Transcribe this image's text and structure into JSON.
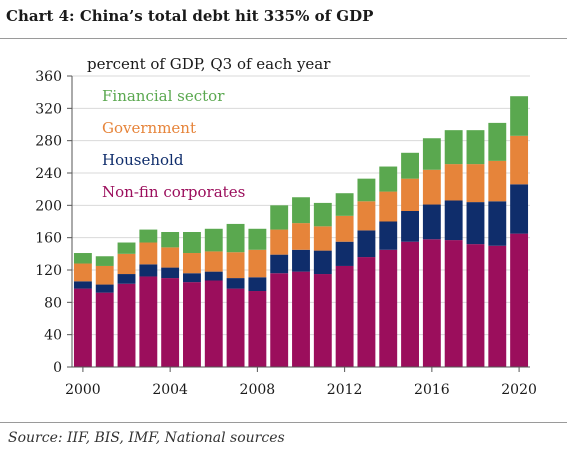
{
  "title": "Chart 4:  China’s total debt hit 335% of GDP",
  "source": "Source: IIF, BIS, IMF, National sources",
  "chart_data": {
    "type": "bar",
    "stacked": true,
    "ylabel": "percent of GDP, Q3  of each year",
    "ylim": [
      0,
      360
    ],
    "yticks": [
      0,
      40,
      80,
      120,
      160,
      200,
      240,
      280,
      320,
      360
    ],
    "x": [
      2000,
      2001,
      2002,
      2003,
      2004,
      2005,
      2006,
      2007,
      2008,
      2009,
      2010,
      2011,
      2012,
      2013,
      2014,
      2015,
      2016,
      2017,
      2018,
      2019,
      2020
    ],
    "xticks": [
      2000,
      2004,
      2008,
      2012,
      2016,
      2020
    ],
    "legend_position": "top-left",
    "series": [
      {
        "name": "Non-fin corporates",
        "color": "#9b0e5c",
        "values": [
          97,
          92,
          103,
          112,
          110,
          105,
          107,
          97,
          94,
          116,
          118,
          115,
          125,
          136,
          145,
          155,
          158,
          157,
          152,
          150,
          165
        ]
      },
      {
        "name": "Household",
        "color": "#0f2d6b",
        "values": [
          9,
          10,
          12,
          15,
          13,
          11,
          11,
          13,
          17,
          23,
          27,
          29,
          30,
          33,
          35,
          38,
          43,
          49,
          52,
          55,
          61
        ]
      },
      {
        "name": "Government",
        "color": "#e6843a",
        "values": [
          22,
          23,
          25,
          27,
          25,
          25,
          25,
          32,
          34,
          31,
          33,
          30,
          32,
          36,
          37,
          40,
          43,
          45,
          47,
          50,
          60
        ]
      },
      {
        "name": "Financial sector",
        "color": "#5aa84f",
        "values": [
          13,
          12,
          14,
          16,
          19,
          26,
          28,
          35,
          26,
          30,
          32,
          29,
          28,
          28,
          31,
          32,
          39,
          42,
          42,
          47,
          49
        ]
      }
    ]
  }
}
